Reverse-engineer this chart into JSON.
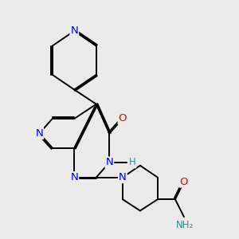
{
  "background_color": "#ebebeb",
  "bond_color": "#000000",
  "atom_colors": {
    "N": "#0000ee",
    "O": "#ee0000",
    "H": "#2e8b8b",
    "C": "#000000"
  },
  "figsize": [
    3.0,
    3.0
  ],
  "dpi": 100
}
